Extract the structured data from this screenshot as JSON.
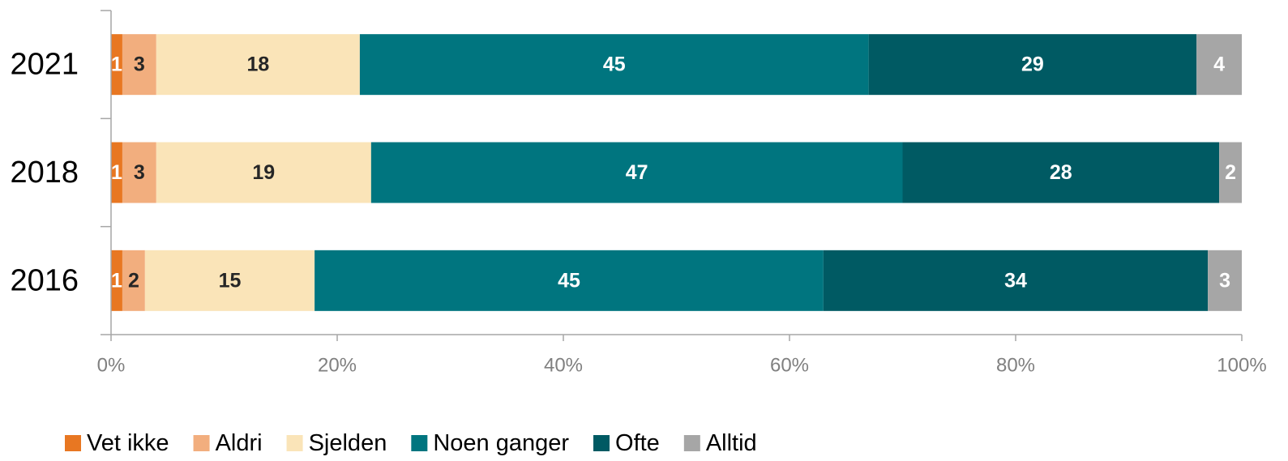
{
  "chart_data": {
    "type": "bar",
    "orientation": "horizontal",
    "stacked": "percent",
    "categories": [
      "2021",
      "2018",
      "2016"
    ],
    "series": [
      {
        "name": "Vet ikke",
        "values": [
          1,
          1,
          1
        ],
        "color": "#E87722",
        "label_color": "#ffffff"
      },
      {
        "name": "Aldri",
        "values": [
          3,
          3,
          2
        ],
        "color": "#F2AE7E",
        "label_color": "#262626"
      },
      {
        "name": "Sjelden",
        "values": [
          18,
          19,
          15
        ],
        "color": "#FAE4B8",
        "label_color": "#262626"
      },
      {
        "name": "Noen ganger",
        "values": [
          45,
          47,
          45
        ],
        "color": "#00757F",
        "label_color": "#ffffff"
      },
      {
        "name": "Ofte",
        "values": [
          29,
          28,
          34
        ],
        "color": "#005A63",
        "label_color": "#ffffff"
      },
      {
        "name": "Alltid",
        "values": [
          4,
          2,
          3
        ],
        "color": "#A6A6A6",
        "label_color": "#ffffff"
      }
    ],
    "xlim": [
      0,
      100
    ],
    "xticks": [
      0,
      20,
      40,
      60,
      80,
      100
    ],
    "xtick_labels": [
      "0%",
      "20%",
      "40%",
      "60%",
      "80%",
      "100%"
    ],
    "title": "",
    "xlabel": "",
    "ylabel": "",
    "grid": false,
    "legend": "bottom-left"
  }
}
